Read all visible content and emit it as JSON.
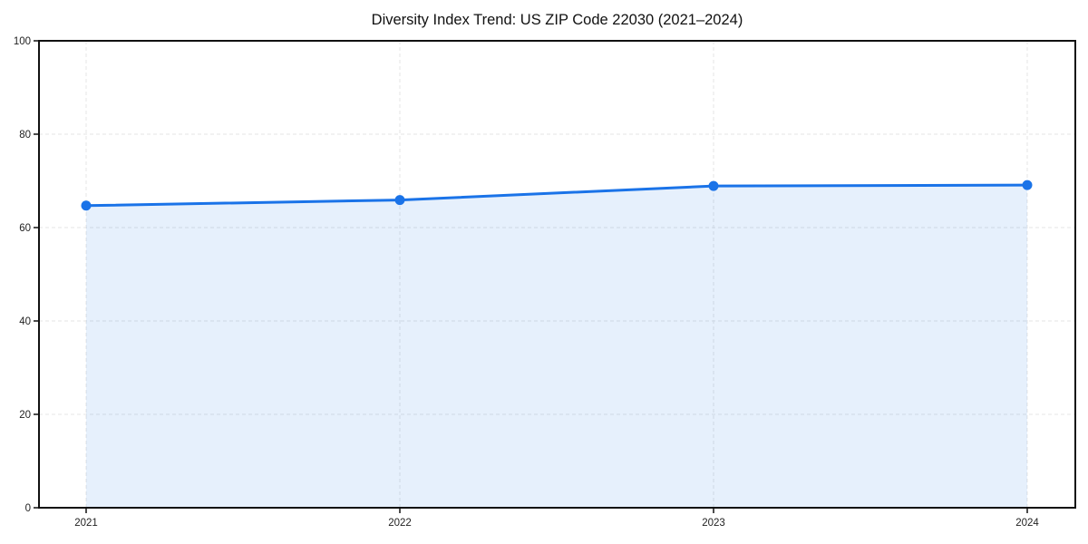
{
  "chart_data": {
    "type": "area",
    "title": "Diversity Index Trend: US ZIP Code 22030 (2021–2024)",
    "x": [
      "2021",
      "2022",
      "2023",
      "2024"
    ],
    "series": [
      {
        "name": "Diversity Index",
        "values": [
          64.7,
          65.9,
          68.9,
          69.1
        ]
      }
    ],
    "xlabel": "",
    "ylabel": "",
    "ylim": [
      0,
      100
    ],
    "yticks": [
      0,
      20,
      40,
      60,
      80,
      100
    ],
    "grid": true,
    "grid_style": "dashed",
    "legend": "none",
    "marker": "circle",
    "colors": {
      "line": "#1a73e8",
      "marker": "#1a73e8",
      "fill": "rgba(26,115,232,0.11)",
      "grid": "#e4e4e4",
      "axis": "#111111",
      "tick_label": "#222222",
      "title": "#111111",
      "background": "#ffffff"
    }
  }
}
